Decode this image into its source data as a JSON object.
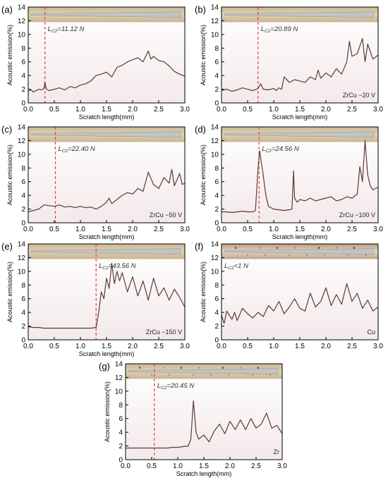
{
  "colors": {
    "signal": "#5a3a36",
    "critical_line": "#e8413c",
    "strip_bg": "#d8c8a8",
    "strip_track": "#bfc3c3",
    "plot_bg_top": "#ffffff",
    "plot_bg_bottom": "#f3e9ea"
  },
  "chart_data": [
    {
      "id": "a",
      "panel_label": "(a)",
      "type": "line",
      "xlabel": "Scratch length(mm)",
      "ylabel": "Acoustic emission(%)",
      "xlim": [
        0,
        3.0
      ],
      "ylim": [
        0,
        14
      ],
      "xticks": [
        "0.0",
        "0.5",
        "1.0",
        "1.5",
        "2.0",
        "2.5",
        "3.0"
      ],
      "yticks": [
        "0",
        "2",
        "4",
        "6",
        "8",
        "10",
        "12",
        "14"
      ],
      "critical_label": "L",
      "critical_sub": "C2",
      "critical_value": "=11.12 N",
      "critical_x": 0.32,
      "sample_label": "",
      "track_style": "clean",
      "series": [
        {
          "x": [
            0.0,
            0.05,
            0.1,
            0.15,
            0.2,
            0.25,
            0.3,
            0.32,
            0.35,
            0.4,
            0.5,
            0.6,
            0.7,
            0.8,
            0.9,
            1.0,
            1.1,
            1.2,
            1.3,
            1.4,
            1.5,
            1.6,
            1.7,
            1.8,
            1.9,
            2.0,
            2.1,
            2.2,
            2.3,
            2.35,
            2.4,
            2.5,
            2.6,
            2.7,
            2.8,
            2.9,
            3.0
          ],
          "y": [
            1.7,
            1.9,
            1.6,
            1.8,
            2.0,
            1.9,
            2.1,
            3.0,
            2.0,
            1.8,
            2.0,
            2.2,
            1.9,
            2.4,
            2.2,
            2.6,
            2.8,
            3.2,
            4.0,
            4.2,
            4.5,
            3.8,
            5.2,
            5.5,
            6.0,
            6.3,
            6.6,
            6.0,
            7.6,
            6.4,
            6.8,
            6.2,
            6.0,
            5.4,
            4.6,
            4.2,
            3.9
          ]
        }
      ]
    },
    {
      "id": "b",
      "panel_label": "(b)",
      "type": "line",
      "xlabel": "Scratch length(mm)",
      "ylabel": "Acoustic emission(%)",
      "xlim": [
        0,
        3.0
      ],
      "ylim": [
        0,
        14
      ],
      "xticks": [
        "0.0",
        "0.5",
        "1.0",
        "1.5",
        "2.0",
        "2.5",
        "3.0"
      ],
      "yticks": [
        "0",
        "2",
        "4",
        "6",
        "8",
        "10",
        "12",
        "14"
      ],
      "critical_label": "L",
      "critical_sub": "C2",
      "critical_value": "=20.89 N",
      "critical_x": 0.7,
      "sample_label": "ZrCu −20 V",
      "track_style": "clean",
      "series": [
        {
          "x": [
            0.0,
            0.1,
            0.2,
            0.3,
            0.4,
            0.5,
            0.6,
            0.7,
            0.75,
            0.8,
            0.9,
            1.0,
            1.05,
            1.1,
            1.15,
            1.2,
            1.3,
            1.4,
            1.5,
            1.6,
            1.7,
            1.8,
            1.85,
            1.9,
            2.0,
            2.1,
            2.2,
            2.3,
            2.4,
            2.45,
            2.5,
            2.6,
            2.7,
            2.75,
            2.8,
            2.9,
            3.0
          ],
          "y": [
            1.8,
            2.0,
            1.7,
            1.9,
            2.2,
            2.0,
            1.8,
            2.1,
            2.8,
            2.0,
            1.9,
            2.1,
            1.8,
            2.2,
            2.0,
            3.8,
            3.0,
            3.4,
            3.2,
            3.0,
            3.8,
            3.4,
            4.8,
            3.6,
            4.4,
            3.8,
            5.0,
            4.2,
            6.0,
            9.0,
            6.8,
            7.2,
            9.4,
            6.0,
            8.6,
            6.4,
            7.0
          ]
        }
      ]
    },
    {
      "id": "c",
      "panel_label": "(c)",
      "type": "line",
      "xlabel": "Scratch length(mm)",
      "ylabel": "Acoustic emission(%)",
      "xlim": [
        0,
        3.0
      ],
      "ylim": [
        0,
        14
      ],
      "xticks": [
        "0.0",
        "0.5",
        "1.0",
        "1.5",
        "2.0",
        "2.5",
        "3.0"
      ],
      "yticks": [
        "0",
        "2",
        "4",
        "6",
        "8",
        "10",
        "12",
        "14"
      ],
      "critical_label": "L",
      "critical_sub": "C2",
      "critical_value": "=22.40 N",
      "critical_x": 0.52,
      "sample_label": "ZrCu −50 V",
      "track_style": "clean",
      "series": [
        {
          "x": [
            0.0,
            0.1,
            0.2,
            0.3,
            0.4,
            0.5,
            0.6,
            0.7,
            0.8,
            0.9,
            1.0,
            1.1,
            1.2,
            1.3,
            1.4,
            1.5,
            1.55,
            1.6,
            1.7,
            1.8,
            1.9,
            2.0,
            2.1,
            2.2,
            2.3,
            2.4,
            2.5,
            2.6,
            2.7,
            2.75,
            2.8,
            2.9,
            2.95,
            3.0
          ],
          "y": [
            1.6,
            1.8,
            2.0,
            2.6,
            2.5,
            2.4,
            2.6,
            2.3,
            2.4,
            2.2,
            2.4,
            2.2,
            2.3,
            2.0,
            2.4,
            3.0,
            3.6,
            2.8,
            3.4,
            4.0,
            4.4,
            4.2,
            5.0,
            4.6,
            7.4,
            5.6,
            5.0,
            6.6,
            5.8,
            7.8,
            5.4,
            7.2,
            5.6,
            5.8
          ]
        }
      ]
    },
    {
      "id": "d",
      "panel_label": "(d)",
      "type": "line",
      "xlabel": "Scratch length(mm)",
      "ylabel": "Acoustic emission(%)",
      "xlim": [
        0,
        3.0
      ],
      "ylim": [
        0,
        14
      ],
      "xticks": [
        "0.0",
        "0.5",
        "1.0",
        "1.5",
        "2.0",
        "2.5",
        "3.0"
      ],
      "yticks": [
        "0",
        "2",
        "4",
        "6",
        "8",
        "10",
        "12",
        "14"
      ],
      "critical_label": "L",
      "critical_sub": "C2",
      "critical_value": "=24.56 N",
      "critical_x": 0.72,
      "sample_label": "ZrCu −100 V",
      "track_style": "clean",
      "series": [
        {
          "x": [
            0.0,
            0.1,
            0.2,
            0.3,
            0.4,
            0.5,
            0.6,
            0.65,
            0.7,
            0.73,
            0.78,
            0.85,
            0.9,
            1.0,
            1.1,
            1.2,
            1.3,
            1.35,
            1.38,
            1.4,
            1.45,
            1.5,
            1.6,
            1.7,
            1.8,
            1.9,
            2.0,
            2.1,
            2.2,
            2.3,
            2.4,
            2.5,
            2.6,
            2.65,
            2.7,
            2.75,
            2.8,
            2.85,
            2.9,
            3.0
          ],
          "y": [
            1.6,
            1.6,
            1.5,
            1.6,
            1.7,
            1.6,
            1.6,
            1.8,
            8.0,
            10.5,
            8.0,
            4.0,
            2.4,
            2.0,
            1.9,
            1.8,
            1.9,
            2.0,
            7.6,
            3.6,
            3.0,
            3.4,
            3.2,
            3.6,
            3.2,
            3.4,
            3.6,
            3.8,
            3.2,
            3.4,
            3.8,
            3.6,
            4.2,
            8.2,
            6.0,
            12.0,
            7.0,
            5.4,
            4.8,
            5.2
          ]
        }
      ]
    },
    {
      "id": "e",
      "panel_label": "(e)",
      "type": "line",
      "xlabel": "Scratch length(mm)",
      "ylabel": "Acoustic emission(%)",
      "xlim": [
        0,
        3.0
      ],
      "ylim": [
        0,
        14
      ],
      "xticks": [
        "0.0",
        "0.5",
        "1.0",
        "1.5",
        "2.0",
        "2.5",
        "3.0"
      ],
      "yticks": [
        "0",
        "2",
        "4",
        "6",
        "8",
        "10",
        "12",
        "14"
      ],
      "critical_label": "L",
      "critical_sub": "C2",
      "critical_value": "=43.56 N",
      "critical_x": 1.3,
      "sample_label": "ZrCu −150 V",
      "track_style": "clean",
      "series": [
        {
          "x": [
            0.0,
            0.1,
            0.2,
            0.3,
            0.4,
            0.5,
            0.6,
            0.7,
            0.8,
            0.9,
            1.0,
            1.1,
            1.2,
            1.3,
            1.35,
            1.4,
            1.45,
            1.5,
            1.55,
            1.6,
            1.65,
            1.7,
            1.75,
            1.8,
            1.9,
            2.0,
            2.1,
            2.2,
            2.3,
            2.4,
            2.5,
            2.6,
            2.7,
            2.8,
            2.9,
            3.0
          ],
          "y": [
            1.9,
            1.8,
            1.8,
            1.7,
            1.7,
            1.7,
            1.7,
            1.7,
            1.7,
            1.7,
            1.7,
            1.7,
            1.7,
            1.8,
            4.0,
            7.0,
            6.0,
            9.0,
            7.5,
            11.2,
            8.2,
            10.0,
            8.6,
            9.8,
            7.0,
            9.2,
            6.4,
            8.6,
            5.8,
            9.0,
            6.4,
            7.6,
            5.8,
            7.4,
            6.2,
            4.8
          ]
        }
      ]
    },
    {
      "id": "f",
      "panel_label": "(f)",
      "type": "line",
      "xlabel": "",
      "ylabel": "Acoustic emission(%)",
      "xlim": [
        0,
        3.0
      ],
      "ylim": [
        0,
        14
      ],
      "xticks": [
        "0.0",
        "0.5",
        "1.0",
        "1.5",
        "2.0",
        "2.5",
        "3.0"
      ],
      "yticks": [
        "0",
        "2",
        "4",
        "6",
        "8",
        "10",
        "12",
        "14"
      ],
      "critical_label": "L",
      "critical_sub": "C2",
      "critical_value": "<1 N",
      "critical_x": null,
      "sample_label": "Cu",
      "track_style": "rough",
      "series": [
        {
          "x": [
            0.0,
            0.05,
            0.1,
            0.2,
            0.25,
            0.3,
            0.4,
            0.5,
            0.6,
            0.7,
            0.8,
            0.9,
            1.0,
            1.1,
            1.2,
            1.3,
            1.4,
            1.5,
            1.6,
            1.7,
            1.8,
            1.9,
            2.0,
            2.1,
            2.2,
            2.3,
            2.4,
            2.5,
            2.6,
            2.7,
            2.8,
            2.9,
            3.0
          ],
          "y": [
            3.6,
            2.4,
            4.2,
            3.0,
            4.0,
            2.8,
            4.6,
            3.8,
            3.2,
            4.0,
            3.4,
            5.0,
            4.2,
            5.6,
            3.8,
            4.8,
            6.0,
            4.6,
            4.2,
            6.8,
            4.8,
            5.6,
            7.6,
            5.0,
            6.6,
            5.2,
            8.2,
            5.6,
            6.8,
            4.6,
            5.8,
            4.2,
            4.8
          ]
        }
      ]
    },
    {
      "id": "g",
      "panel_label": "(g)",
      "type": "line",
      "xlabel": "Scratch length(mm)",
      "ylabel": "Acoustic emission(%)",
      "xlim": [
        0,
        3.0
      ],
      "ylim": [
        0,
        14
      ],
      "xticks": [
        "0.0",
        "0.5",
        "1.0",
        "1.5",
        "2.0",
        "2.5",
        "3.0"
      ],
      "yticks": [
        "0",
        "2",
        "4",
        "6",
        "8",
        "10",
        "12",
        "14"
      ],
      "critical_label": "L",
      "critical_sub": "C2",
      "critical_value": "=20.45 N",
      "critical_x": 0.55,
      "sample_label": "Zr",
      "track_style": "spotted",
      "series": [
        {
          "x": [
            0.0,
            0.1,
            0.2,
            0.3,
            0.4,
            0.5,
            0.6,
            0.7,
            0.8,
            0.9,
            1.0,
            1.1,
            1.2,
            1.25,
            1.3,
            1.35,
            1.4,
            1.5,
            1.6,
            1.7,
            1.8,
            1.9,
            2.0,
            2.1,
            2.2,
            2.3,
            2.4,
            2.5,
            2.6,
            2.7,
            2.8,
            2.9,
            3.0
          ],
          "y": [
            1.7,
            1.7,
            1.7,
            1.7,
            1.7,
            1.7,
            1.7,
            1.7,
            1.7,
            1.8,
            1.8,
            1.9,
            2.0,
            3.0,
            8.6,
            4.0,
            3.0,
            3.6,
            2.6,
            4.2,
            5.2,
            3.8,
            5.6,
            4.4,
            5.8,
            4.4,
            6.0,
            4.6,
            5.2,
            6.8,
            4.6,
            5.0,
            3.8
          ]
        }
      ]
    }
  ]
}
